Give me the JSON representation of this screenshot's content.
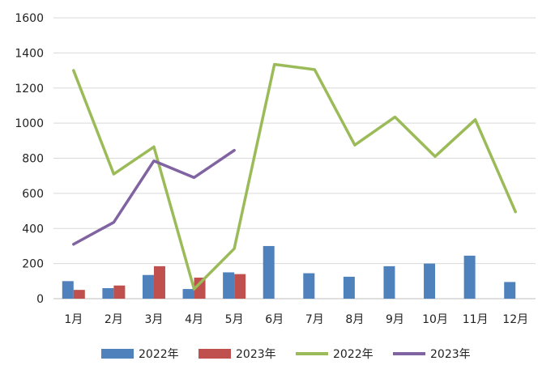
{
  "chart_data": {
    "type": "bar+line",
    "categories": [
      "1月",
      "2月",
      "3月",
      "4月",
      "5月",
      "6月",
      "7月",
      "8月",
      "9月",
      "10月",
      "11月",
      "12月"
    ],
    "ylim": [
      0,
      1600
    ],
    "yticks": [
      0,
      200,
      400,
      600,
      800,
      1000,
      1200,
      1400,
      1600
    ],
    "grid": true,
    "legend_position": "bottom",
    "bar_series": [
      {
        "name": "2022年",
        "color": "#4F81BD",
        "values": [
          100,
          60,
          135,
          55,
          150,
          300,
          145,
          125,
          185,
          200,
          245,
          95
        ]
      },
      {
        "name": "2023年",
        "color": "#C0504D",
        "values": [
          50,
          75,
          185,
          120,
          140,
          null,
          null,
          null,
          null,
          null,
          null,
          null
        ]
      }
    ],
    "line_series": [
      {
        "name": "2022年",
        "color": "#9BBB59",
        "values": [
          1300,
          710,
          865,
          55,
          285,
          1335,
          1305,
          875,
          1035,
          810,
          1020,
          495
        ]
      },
      {
        "name": "2023年",
        "color": "#8064A2",
        "values": [
          310,
          435,
          785,
          690,
          845,
          null,
          null,
          null,
          null,
          null,
          null,
          null
        ]
      }
    ]
  }
}
